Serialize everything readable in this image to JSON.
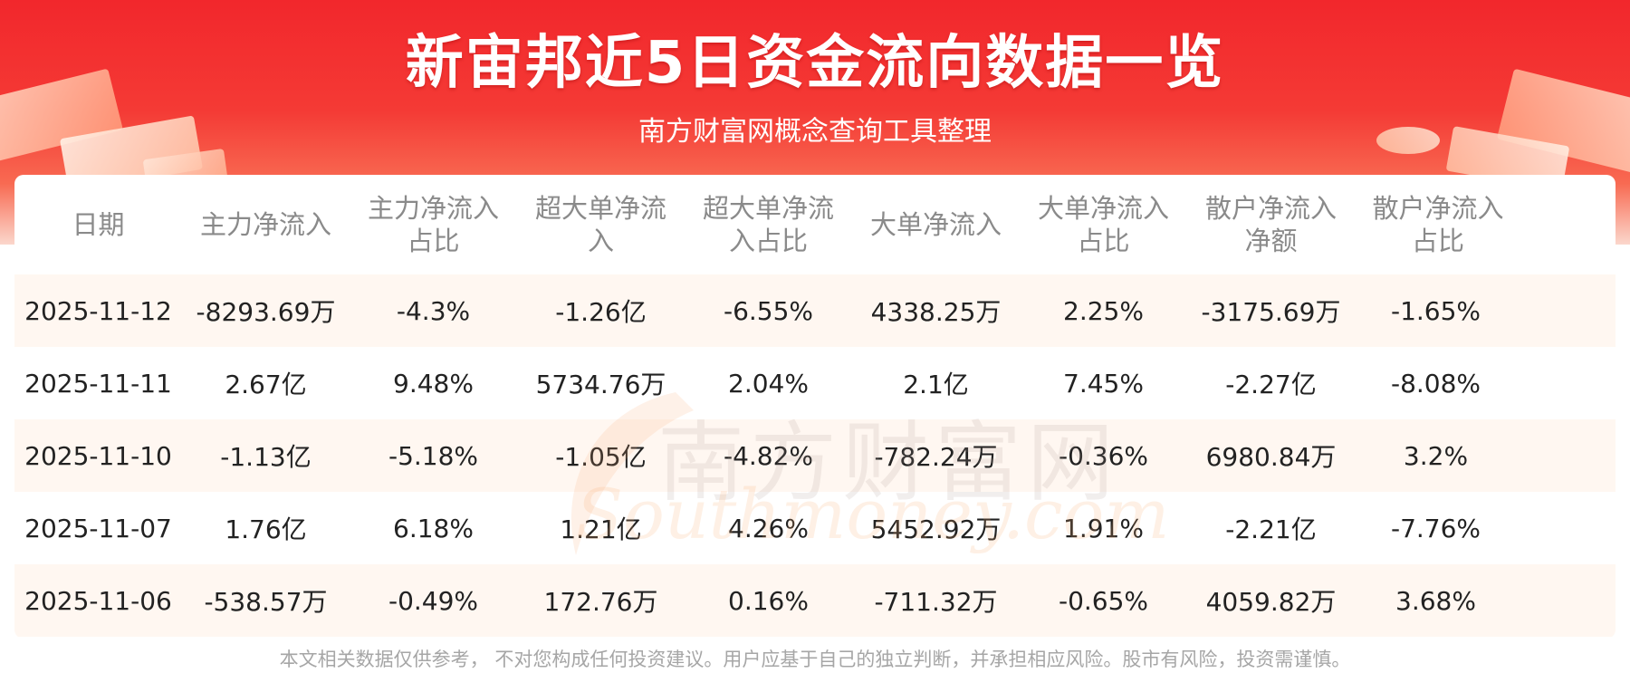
{
  "header": {
    "title": "新宙邦近5日资金流向数据一览",
    "subtitle": "南方财富网概念查询工具整理"
  },
  "watermark": {
    "cn": "南方财富网",
    "en": "Southmoney.com"
  },
  "table": {
    "headers": [
      "日期",
      "主力净流入",
      "主力净流入占比",
      "超大单净流入",
      "超大单净流入占比",
      "大单净流入",
      "大单净流入占比",
      "散户净流入净额",
      "散户净流入占比"
    ],
    "rows": [
      [
        "2025-11-12",
        "-8293.69万",
        "-4.3%",
        "-1.26亿",
        "-6.55%",
        "4338.25万",
        "2.25%",
        "-3175.69万",
        "-1.65%"
      ],
      [
        "2025-11-11",
        "2.67亿",
        "9.48%",
        "5734.76万",
        "2.04%",
        "2.1亿",
        "7.45%",
        "-2.27亿",
        "-8.08%"
      ],
      [
        "2025-11-10",
        "-1.13亿",
        "-5.18%",
        "-1.05亿",
        "-4.82%",
        "-782.24万",
        "-0.36%",
        "6980.84万",
        "3.2%"
      ],
      [
        "2025-11-07",
        "1.76亿",
        "6.18%",
        "1.21亿",
        "4.26%",
        "5452.92万",
        "1.91%",
        "-2.21亿",
        "-7.76%"
      ],
      [
        "2025-11-06",
        "-538.57万",
        "-0.49%",
        "172.76万",
        "0.16%",
        "-711.32万",
        "-0.65%",
        "4059.82万",
        "3.68%"
      ]
    ]
  },
  "footer": {
    "disclaimer": "本文相关数据仅供参考， 不对您构成任何投资建议。用户应基于自己的独立判断，并承担相应风险。股市有风险，投资需谨慎。"
  }
}
